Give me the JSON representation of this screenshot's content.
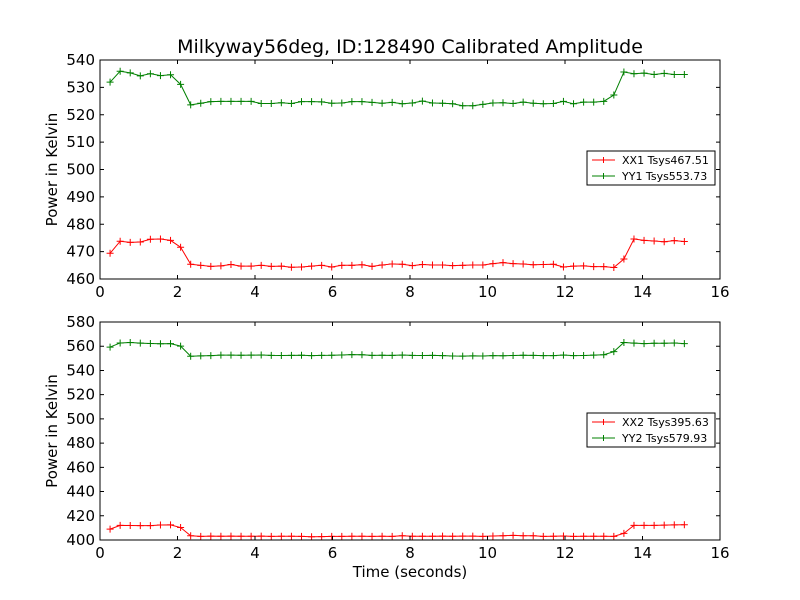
{
  "figure": {
    "title": "Milkyway56deg, ID:128490 Calibrated Amplitude",
    "background": "#ffffff"
  },
  "chart_data": [
    {
      "type": "line",
      "title": "Milkyway56deg, ID:128490 Calibrated Amplitude",
      "xlabel": "",
      "ylabel": "Power in Kelvin",
      "xlim": [
        0,
        16
      ],
      "ylim": [
        460,
        540
      ],
      "xticks": [
        0,
        2,
        4,
        6,
        8,
        10,
        12,
        14,
        16
      ],
      "yticks": [
        460,
        470,
        480,
        490,
        500,
        510,
        520,
        530,
        540
      ],
      "grid": false,
      "legend_position": "center-right",
      "x": [
        0.26,
        0.52,
        0.78,
        1.04,
        1.3,
        1.56,
        1.82,
        2.08,
        2.34,
        2.6,
        2.86,
        3.12,
        3.38,
        3.64,
        3.9,
        4.16,
        4.42,
        4.68,
        4.94,
        5.2,
        5.46,
        5.72,
        5.98,
        6.24,
        6.5,
        6.76,
        7.02,
        7.28,
        7.54,
        7.8,
        8.06,
        8.32,
        8.58,
        8.84,
        9.1,
        9.36,
        9.62,
        9.88,
        10.14,
        10.4,
        10.66,
        10.92,
        11.18,
        11.44,
        11.7,
        11.96,
        12.22,
        12.48,
        12.74,
        13.0,
        13.26,
        13.52,
        13.78,
        14.04,
        14.3,
        14.56,
        14.82,
        15.08
      ],
      "series": [
        {
          "name": "XX1 Tsys467.51",
          "color": "#ff0000",
          "values": [
            469.4,
            473.8,
            473.4,
            473.5,
            474.5,
            474.6,
            474.1,
            471.6,
            465.4,
            465.0,
            464.6,
            464.8,
            465.3,
            464.7,
            464.7,
            465.0,
            464.6,
            464.7,
            464.3,
            464.4,
            464.7,
            465.0,
            464.4,
            465.0,
            465.0,
            465.2,
            464.6,
            465.1,
            465.5,
            465.4,
            464.9,
            465.3,
            465.1,
            465.1,
            464.9,
            465.0,
            465.1,
            465.1,
            465.6,
            466.0,
            465.6,
            465.5,
            465.2,
            465.3,
            465.4,
            464.4,
            464.7,
            464.8,
            464.5,
            464.5,
            464.2,
            467.3,
            474.6,
            474.1,
            473.9,
            473.6,
            474.0,
            473.7
          ]
        },
        {
          "name": "YY1 Tsys553.73",
          "color": "#008000",
          "values": [
            531.9,
            535.9,
            535.3,
            534.2,
            535.0,
            534.3,
            534.6,
            531.1,
            523.6,
            524.2,
            524.8,
            524.9,
            524.9,
            524.9,
            524.9,
            524.1,
            524.1,
            524.4,
            524.1,
            524.8,
            524.8,
            524.7,
            524.2,
            524.3,
            524.8,
            524.8,
            524.5,
            524.2,
            524.5,
            524.0,
            524.3,
            525.0,
            524.3,
            524.2,
            524.0,
            523.3,
            523.3,
            523.8,
            524.3,
            524.4,
            524.1,
            524.6,
            524.2,
            524.0,
            524.1,
            524.9,
            524.0,
            524.6,
            524.6,
            524.9,
            527.2,
            535.6,
            535.0,
            535.2,
            534.7,
            535.1,
            534.7,
            534.7
          ]
        }
      ]
    },
    {
      "type": "line",
      "title": "",
      "xlabel": "Time (seconds)",
      "ylabel": "Power in Kelvin",
      "xlim": [
        0,
        16
      ],
      "ylim": [
        400,
        580
      ],
      "xticks": [
        0,
        2,
        4,
        6,
        8,
        10,
        12,
        14,
        16
      ],
      "yticks": [
        400,
        420,
        440,
        460,
        480,
        500,
        520,
        540,
        560,
        580
      ],
      "grid": false,
      "legend_position": "center-right",
      "x": [
        0.26,
        0.52,
        0.78,
        1.04,
        1.3,
        1.56,
        1.82,
        2.08,
        2.34,
        2.6,
        2.86,
        3.12,
        3.38,
        3.64,
        3.9,
        4.16,
        4.42,
        4.68,
        4.94,
        5.2,
        5.46,
        5.72,
        5.98,
        6.24,
        6.5,
        6.76,
        7.02,
        7.28,
        7.54,
        7.8,
        8.06,
        8.32,
        8.58,
        8.84,
        9.1,
        9.36,
        9.62,
        9.88,
        10.14,
        10.4,
        10.66,
        10.92,
        11.18,
        11.44,
        11.7,
        11.96,
        12.22,
        12.48,
        12.74,
        13.0,
        13.26,
        13.52,
        13.78,
        14.04,
        14.3,
        14.56,
        14.82,
        15.08
      ],
      "series": [
        {
          "name": "XX2 Tsys395.63",
          "color": "#ff0000",
          "values": [
            409.0,
            412.1,
            412.0,
            411.9,
            411.9,
            412.4,
            412.5,
            410.3,
            403.5,
            403.0,
            403.2,
            403.1,
            403.2,
            403.1,
            403.1,
            403.2,
            403.0,
            403.1,
            403.1,
            403.0,
            402.7,
            402.8,
            403.0,
            403.0,
            403.1,
            403.1,
            403.0,
            403.1,
            403.0,
            403.5,
            403.1,
            403.1,
            403.1,
            403.2,
            403.1,
            403.2,
            403.2,
            403.0,
            403.3,
            403.5,
            403.8,
            403.5,
            403.5,
            403.0,
            403.1,
            403.3,
            403.0,
            403.1,
            403.1,
            403.1,
            403.0,
            405.5,
            412.1,
            412.1,
            412.1,
            412.3,
            412.5,
            412.6
          ]
        },
        {
          "name": "YY2 Tsys579.93",
          "color": "#008000",
          "values": [
            559.3,
            562.7,
            563.1,
            562.6,
            562.2,
            562.0,
            562.1,
            560.1,
            551.7,
            552.0,
            552.2,
            552.6,
            552.6,
            552.5,
            552.6,
            552.8,
            552.4,
            552.3,
            552.4,
            552.5,
            552.2,
            552.4,
            552.5,
            552.8,
            553.1,
            553.0,
            552.4,
            552.5,
            552.4,
            552.7,
            552.4,
            552.3,
            552.4,
            552.2,
            551.9,
            551.8,
            552.0,
            551.9,
            552.2,
            552.1,
            552.3,
            552.5,
            552.4,
            552.2,
            552.2,
            552.7,
            552.2,
            552.3,
            552.6,
            553.0,
            555.5,
            563.1,
            562.6,
            562.1,
            562.5,
            562.5,
            562.7,
            562.1
          ]
        }
      ]
    }
  ]
}
